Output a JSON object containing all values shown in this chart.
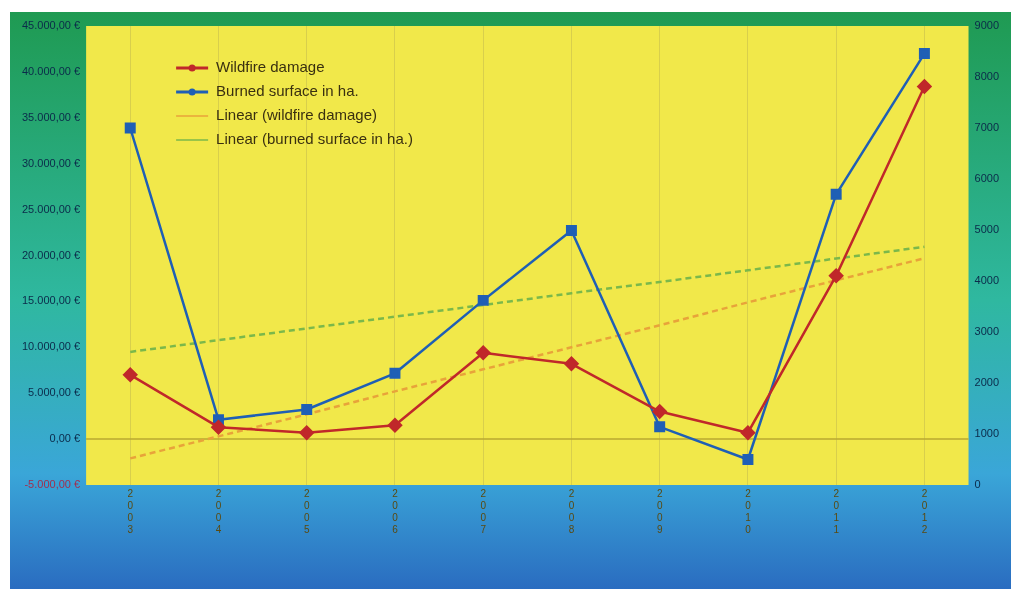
{
  "chart_data": {
    "type": "line",
    "categories": [
      "2003",
      "2004",
      "2005",
      "2006",
      "2007",
      "2008",
      "2009",
      "2010",
      "2011",
      "2012"
    ],
    "series": [
      {
        "name": "Wildfire damage",
        "color": "#c0282a",
        "marker": "diamond",
        "values": [
          7000,
          1300,
          700,
          1500,
          9400,
          8200,
          3000,
          700,
          17800,
          38400
        ]
      },
      {
        "name": "Burned surface in ha.",
        "color": "#1f5fb5",
        "marker": "square",
        "axis": "y2",
        "values": [
          7000,
          1280,
          1480,
          2190,
          3620,
          4990,
          1140,
          500,
          5700,
          8460
        ]
      },
      {
        "name": "Linear (wildfire damage)",
        "color": "#e8a33a",
        "marker": "none",
        "line_style": "dashed",
        "values": [
          -2100,
          300,
          2700,
          5200,
          7600,
          10000,
          12400,
          14900,
          17300,
          19700
        ]
      },
      {
        "name": "Linear (burned surface in ha.)",
        "color": "#7bb84a",
        "marker": "none",
        "line_style": "dashed",
        "axis": "y2",
        "values": [
          2610,
          2840,
          3070,
          3300,
          3530,
          3760,
          3980,
          4210,
          4440,
          4670
        ]
      }
    ],
    "ylim": [
      -5000,
      45000
    ],
    "yticks": [
      {
        "value": -5000,
        "label": "-5.000,00 €"
      },
      {
        "value": 0,
        "label": "0,00 €"
      },
      {
        "value": 5000,
        "label": "5.000,00 €"
      },
      {
        "value": 10000,
        "label": "10.000,00 €"
      },
      {
        "value": 15000,
        "label": "15.000,00 €"
      },
      {
        "value": 20000,
        "label": "20.000,00 €"
      },
      {
        "value": 25000,
        "label": "25.000,00 €"
      },
      {
        "value": 30000,
        "label": "30.000,00 €"
      },
      {
        "value": 35000,
        "label": "35.000,00 €"
      },
      {
        "value": 40000,
        "label": "40.000,00 €"
      },
      {
        "value": 45000,
        "label": "45.000,00 €"
      }
    ],
    "y2lim": [
      0,
      9000
    ],
    "y2ticks": [
      0,
      1000,
      2000,
      3000,
      4000,
      5000,
      6000,
      7000,
      8000,
      9000
    ],
    "ref_lines": [
      {
        "axis": "y",
        "value": 0,
        "color": "#b8a830"
      }
    ],
    "grid": "x",
    "legend": "top left",
    "line_style": "solid"
  }
}
